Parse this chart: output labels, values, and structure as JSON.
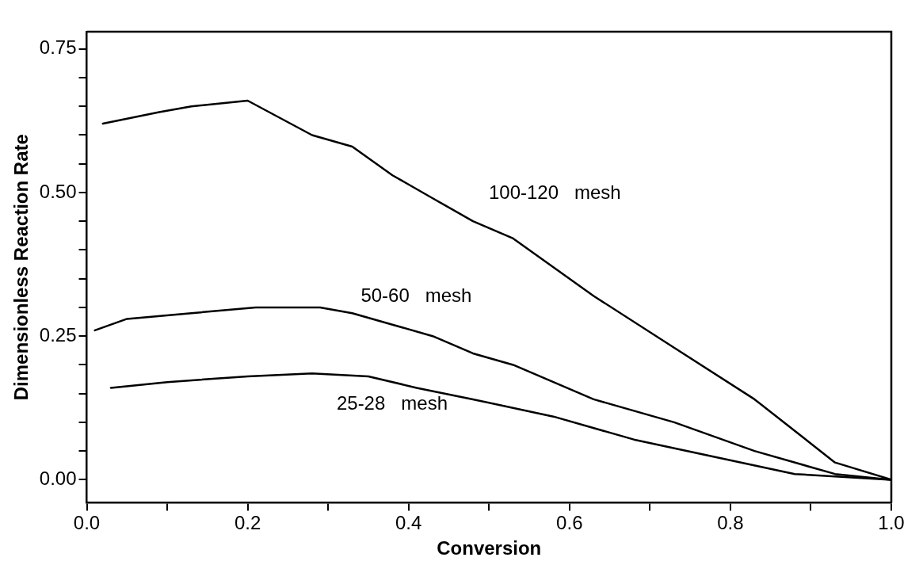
{
  "chart_data": {
    "type": "line",
    "xlabel": "Conversion",
    "ylabel": "Dimensionless Reaction Rate",
    "xlim": [
      0,
      1
    ],
    "ylim": [
      -0.04,
      0.78
    ],
    "xticks": [
      {
        "value": 0,
        "label": "0.0"
      },
      {
        "value": 0.1,
        "label": null
      },
      {
        "value": 0.2,
        "label": "0.2"
      },
      {
        "value": 0.3,
        "label": null
      },
      {
        "value": 0.4,
        "label": "0.4"
      },
      {
        "value": 0.5,
        "label": null
      },
      {
        "value": 0.6,
        "label": "0.6"
      },
      {
        "value": 0.7,
        "label": null
      },
      {
        "value": 0.8,
        "label": "0.8"
      },
      {
        "value": 0.9,
        "label": null
      },
      {
        "value": 1,
        "label": "1.0"
      }
    ],
    "yticks": [
      {
        "value": 0,
        "label": "0.00"
      },
      {
        "value": 0.05,
        "label": null
      },
      {
        "value": 0.1,
        "label": null
      },
      {
        "value": 0.15,
        "label": null
      },
      {
        "value": 0.2,
        "label": null
      },
      {
        "value": 0.25,
        "label": "0.25"
      },
      {
        "value": 0.3,
        "label": null
      },
      {
        "value": 0.35,
        "label": null
      },
      {
        "value": 0.4,
        "label": null
      },
      {
        "value": 0.45,
        "label": null
      },
      {
        "value": 0.5,
        "label": "0.50"
      },
      {
        "value": 0.55,
        "label": null
      },
      {
        "value": 0.6,
        "label": null
      },
      {
        "value": 0.65,
        "label": null
      },
      {
        "value": 0.7,
        "label": null
      },
      {
        "value": 0.75,
        "label": "0.75"
      }
    ],
    "grid": false,
    "legend": false,
    "marker": "none",
    "line_style": "solid",
    "series": [
      {
        "name": "100-120   mesh",
        "color": "#000000",
        "x": [
          0.02,
          0.09,
          0.13,
          0.2,
          0.24,
          0.28,
          0.33,
          0.38,
          0.43,
          0.48,
          0.53,
          0.63,
          0.73,
          0.83,
          0.93,
          1.0
        ],
        "values": [
          0.62,
          0.64,
          0.65,
          0.66,
          0.63,
          0.6,
          0.58,
          0.53,
          0.49,
          0.45,
          0.42,
          0.32,
          0.23,
          0.14,
          0.03,
          0
        ]
      },
      {
        "name": "50-60   mesh",
        "color": "#000000",
        "x": [
          0.01,
          0.05,
          0.13,
          0.21,
          0.29,
          0.33,
          0.38,
          0.43,
          0.48,
          0.53,
          0.63,
          0.73,
          0.83,
          0.93,
          1.0
        ],
        "values": [
          0.26,
          0.28,
          0.29,
          0.3,
          0.3,
          0.29,
          0.27,
          0.25,
          0.22,
          0.2,
          0.14,
          0.1,
          0.05,
          0.01,
          0
        ]
      },
      {
        "name": "25-28   mesh",
        "color": "#000000",
        "x": [
          0.03,
          0.1,
          0.2,
          0.28,
          0.35,
          0.41,
          0.48,
          0.58,
          0.68,
          0.78,
          0.88,
          1.0
        ],
        "values": [
          0.16,
          0.17,
          0.18,
          0.185,
          0.18,
          0.16,
          0.14,
          0.11,
          0.07,
          0.04,
          0.01,
          0
        ]
      }
    ]
  }
}
